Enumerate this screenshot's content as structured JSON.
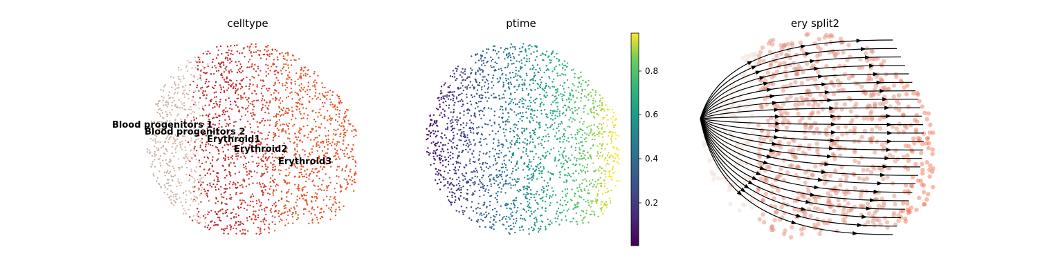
{
  "chart_data": [
    {
      "type": "scatter",
      "title": "celltype",
      "xlabel": "",
      "ylabel": "",
      "legend": "on data",
      "categories": [
        "Blood progenitors 1",
        "Blood progenitors 2",
        "Erythroid1",
        "Erythroid2",
        "Erythroid3"
      ],
      "category_colors": {
        "Blood progenitors 1": "#c9b3a5",
        "Blood progenitors 2": "#dcbcad",
        "Erythroid1": "#c4282e",
        "Erythroid2": "#d63a30",
        "Erythroid3": "#ea5428"
      }
    },
    {
      "type": "scatter",
      "title": "ptime",
      "xlabel": "",
      "ylabel": "",
      "colorbar": {
        "colormap": "viridis",
        "range": [
          0.0,
          0.97
        ],
        "ticks": [
          "0.2",
          "0.4",
          "0.6",
          "0.8"
        ]
      }
    },
    {
      "type": "scatter",
      "title": "ery split2",
      "xlabel": "",
      "ylabel": "",
      "overlay": "streamlines with arrows",
      "point_colors": [
        "#f0dcd0",
        "#e0826e",
        "#f26a45"
      ]
    }
  ]
}
